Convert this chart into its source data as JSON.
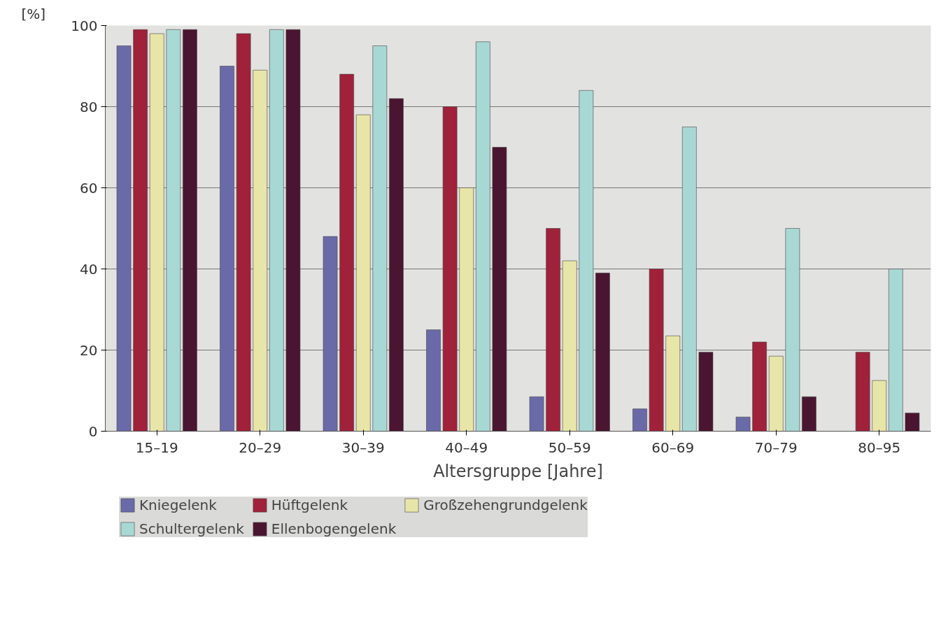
{
  "chart_data": {
    "type": "bar",
    "xlabel": "Altersgruppe [Jahre]",
    "ylabel": "[%]",
    "categories": [
      "15–19",
      "20–29",
      "30–39",
      "40–49",
      "50–59",
      "60–69",
      "70–79",
      "80–95"
    ],
    "series": [
      {
        "name": "Kniegelenk",
        "color": "#6b6aa8",
        "values": [
          95,
          90,
          48,
          25,
          8.5,
          5.5,
          3.5,
          null
        ]
      },
      {
        "name": "Hüftgelenk",
        "color": "#a0213a",
        "values": [
          99,
          98,
          88,
          80,
          50,
          40,
          22,
          19.5
        ]
      },
      {
        "name": "Großzehengrundgelenk",
        "color": "#e8e5a8",
        "values": [
          98,
          89,
          78,
          60,
          42,
          23.5,
          18.5,
          12.5
        ]
      },
      {
        "name": "Schultergelenk",
        "color": "#a8d8d4",
        "values": [
          99,
          99,
          95,
          96,
          84,
          75,
          50,
          40
        ]
      },
      {
        "name": "Ellenbogengelenk",
        "color": "#4a1530",
        "values": [
          99,
          99,
          82,
          70,
          39,
          19.5,
          8.5,
          4.5
        ]
      }
    ],
    "ylim": [
      0,
      100
    ],
    "yticks": [
      0,
      20,
      40,
      60,
      80,
      100
    ],
    "grid": "y",
    "legend": "bottom"
  }
}
